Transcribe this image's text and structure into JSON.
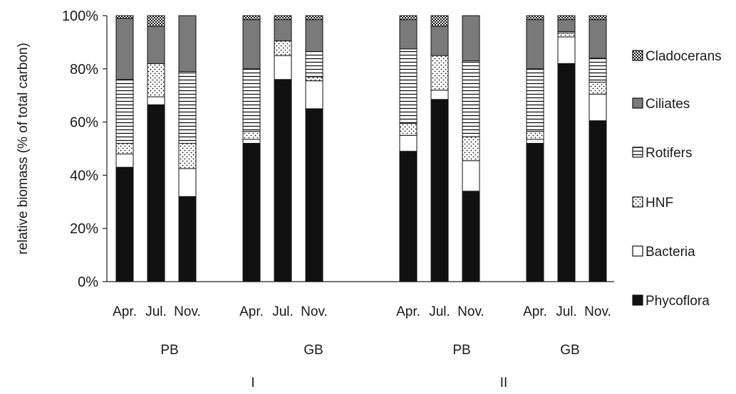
{
  "chart_data": {
    "type": "bar",
    "stacked": true,
    "percent_stacked": true,
    "ylabel": "relative biomass (% of total carbon)",
    "ylim": [
      0,
      100
    ],
    "yticks": [
      "0%",
      "20%",
      "40%",
      "60%",
      "80%",
      "100%"
    ],
    "grid": false,
    "legend_position": "right",
    "categories": [
      {
        "label": "Apr.",
        "site": "PB",
        "period": "I"
      },
      {
        "label": "Jul.",
        "site": "PB",
        "period": "I"
      },
      {
        "label": "Nov.",
        "site": "PB",
        "period": "I"
      },
      {
        "label": "Apr.",
        "site": "GB",
        "period": "I"
      },
      {
        "label": "Jul.",
        "site": "GB",
        "period": "I"
      },
      {
        "label": "Nov.",
        "site": "GB",
        "period": "I"
      },
      {
        "label": "Apr.",
        "site": "PB",
        "period": "II"
      },
      {
        "label": "Jul.",
        "site": "PB",
        "period": "II"
      },
      {
        "label": "Nov.",
        "site": "PB",
        "period": "II"
      },
      {
        "label": "Apr.",
        "site": "GB",
        "period": "II"
      },
      {
        "label": "Jul.",
        "site": "GB",
        "period": "II"
      },
      {
        "label": "Nov.",
        "site": "GB",
        "period": "II"
      }
    ],
    "site_labels": [
      "PB",
      "GB",
      "PB",
      "GB"
    ],
    "period_labels": [
      "I",
      "II"
    ],
    "series": [
      {
        "name": "Phycoflora",
        "pattern": "black",
        "values": [
          43,
          66.5,
          32,
          52,
          76,
          65,
          49,
          68.5,
          34,
          52,
          82,
          60.5
        ]
      },
      {
        "name": "Bacteria",
        "pattern": "white",
        "values": [
          5,
          3,
          10.5,
          1.5,
          9,
          10.5,
          6,
          3.5,
          11.5,
          1.5,
          10,
          10
        ]
      },
      {
        "name": "HNF",
        "pattern": "dots",
        "values": [
          4,
          12.5,
          9.5,
          3,
          5.5,
          1.5,
          4.5,
          13,
          9,
          3,
          1.5,
          4.5
        ]
      },
      {
        "name": "Rotifers",
        "pattern": "hlines",
        "values": [
          24,
          0,
          27,
          23.5,
          0,
          9.5,
          28,
          0,
          28.5,
          23.5,
          0.5,
          9
        ]
      },
      {
        "name": "Ciliates",
        "pattern": "gray",
        "values": [
          23,
          14,
          21,
          18.5,
          8,
          12,
          11,
          11,
          17,
          18.5,
          4.5,
          14.5
        ]
      },
      {
        "name": "Cladocerans",
        "pattern": "checker",
        "values": [
          1,
          4,
          0,
          1.5,
          1.5,
          1.5,
          1.5,
          4,
          0,
          1.5,
          1.5,
          1.5
        ]
      }
    ]
  }
}
